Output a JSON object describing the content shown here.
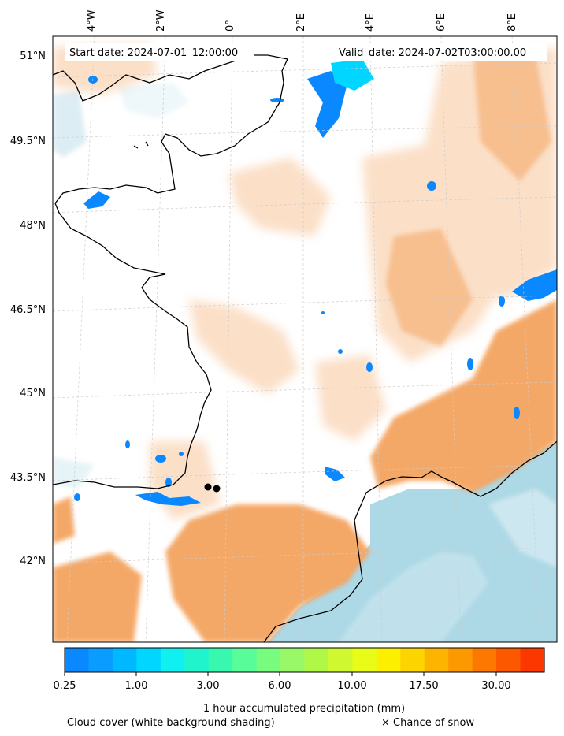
{
  "header": {
    "start_date": "Start date: 2024-07-01_12:00:00",
    "valid_date": "Valid_date: 2024-07-02T03:00:00.00"
  },
  "axes": {
    "lon_labels": [
      "4°W",
      "2°W",
      "0°",
      "2°E",
      "4°E",
      "6°E",
      "8°E"
    ],
    "lat_labels": [
      "51°N",
      "49.5°N",
      "48°N",
      "46.5°N",
      "45°N",
      "43.5°N",
      "42°N"
    ]
  },
  "colorbar": {
    "tick_labels": [
      "0.25",
      "1.00",
      "3.00",
      "6.00",
      "10.00",
      "17.50",
      "30.00"
    ],
    "colors": [
      "#0a88ff",
      "#0a9cff",
      "#00b8ff",
      "#00d6ff",
      "#10f0f0",
      "#20f4cc",
      "#38f8b0",
      "#58fc98",
      "#78fc80",
      "#98f868",
      "#b0f848",
      "#d0f830",
      "#e8fc18",
      "#fcf000",
      "#fcd400",
      "#fcb400",
      "#fc9800",
      "#fc7800",
      "#fc5800",
      "#fc3800"
    ],
    "title": "1 hour accumulated precipitation (mm)"
  },
  "legend": {
    "cloud_cover": "Cloud cover (white background shading)",
    "snow": "× Chance of snow"
  },
  "colors": {
    "sea_cloud": "#add8e6",
    "cloud_orange": "#f4a460",
    "precip_blue": "#0a88ff",
    "coastline": "#000000"
  }
}
